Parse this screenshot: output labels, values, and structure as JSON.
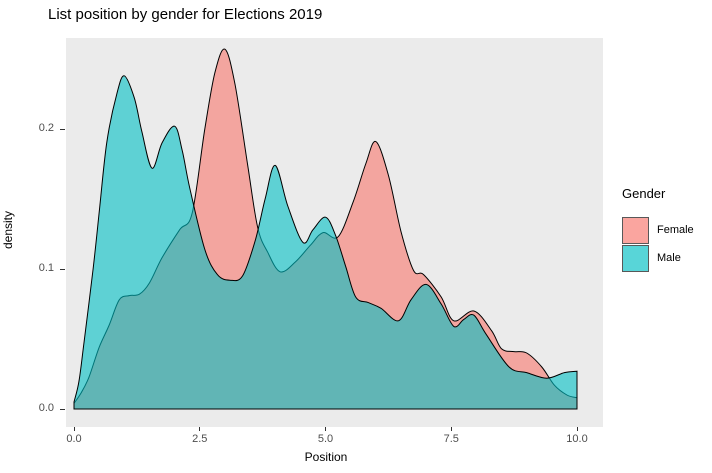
{
  "title": "List position by gender for Elections 2019",
  "chart_data": {
    "type": "area",
    "subtype": "overlapping-density",
    "title": "List position by gender for Elections 2019",
    "xlabel": "Position",
    "ylabel": "density",
    "xlim": [
      0,
      10
    ],
    "ylim": [
      0,
      0.265
    ],
    "grid": false,
    "panel_background": "#EBEBEB",
    "x_ticks": [
      {
        "value": 0,
        "label": "0.0"
      },
      {
        "value": 2.5,
        "label": "2.5"
      },
      {
        "value": 5,
        "label": "5.0"
      },
      {
        "value": 7.5,
        "label": "7.5"
      },
      {
        "value": 10,
        "label": "10.0"
      }
    ],
    "y_ticks": [
      {
        "value": 0,
        "label": "0.0"
      },
      {
        "value": 0.1,
        "label": "0.1"
      },
      {
        "value": 0.2,
        "label": "0.2"
      }
    ],
    "legend": {
      "title": "Gender",
      "position": "right",
      "entries": [
        {
          "label": "Female",
          "color": "#F8766D"
        },
        {
          "label": "Male",
          "color": "#00BFC4"
        }
      ]
    },
    "series": [
      {
        "name": "Female",
        "color": "#F8766D",
        "fill_opacity": 0.6,
        "stroke": "#000000",
        "points": [
          [
            0,
            0.004
          ],
          [
            0.15,
            0.012
          ],
          [
            0.3,
            0.023
          ],
          [
            0.5,
            0.044
          ],
          [
            0.7,
            0.06
          ],
          [
            0.9,
            0.078
          ],
          [
            1.1,
            0.081
          ],
          [
            1.3,
            0.082
          ],
          [
            1.5,
            0.09
          ],
          [
            1.75,
            0.108
          ],
          [
            2.1,
            0.128
          ],
          [
            2.35,
            0.14
          ],
          [
            2.6,
            0.2
          ],
          [
            2.8,
            0.24
          ],
          [
            3.0,
            0.257
          ],
          [
            3.2,
            0.232
          ],
          [
            3.45,
            0.175
          ],
          [
            3.65,
            0.13
          ],
          [
            3.85,
            0.112
          ],
          [
            4.1,
            0.098
          ],
          [
            4.4,
            0.105
          ],
          [
            4.7,
            0.117
          ],
          [
            4.95,
            0.126
          ],
          [
            5.25,
            0.123
          ],
          [
            5.55,
            0.148
          ],
          [
            5.8,
            0.175
          ],
          [
            6.0,
            0.191
          ],
          [
            6.25,
            0.167
          ],
          [
            6.5,
            0.127
          ],
          [
            6.75,
            0.099
          ],
          [
            6.95,
            0.096
          ],
          [
            7.3,
            0.08
          ],
          [
            7.55,
            0.063
          ],
          [
            7.95,
            0.07
          ],
          [
            8.3,
            0.056
          ],
          [
            8.5,
            0.043
          ],
          [
            8.75,
            0.041
          ],
          [
            9.0,
            0.04
          ],
          [
            9.3,
            0.03
          ],
          [
            9.55,
            0.017
          ],
          [
            9.8,
            0.01
          ],
          [
            10,
            0.008
          ]
        ]
      },
      {
        "name": "Male",
        "color": "#00BFC4",
        "fill_opacity": 0.6,
        "stroke": "#000000",
        "points": [
          [
            0,
            0.005
          ],
          [
            0.1,
            0.02
          ],
          [
            0.2,
            0.048
          ],
          [
            0.38,
            0.1
          ],
          [
            0.5,
            0.14
          ],
          [
            0.65,
            0.19
          ],
          [
            0.85,
            0.225
          ],
          [
            1.0,
            0.238
          ],
          [
            1.2,
            0.222
          ],
          [
            1.35,
            0.198
          ],
          [
            1.55,
            0.172
          ],
          [
            1.75,
            0.19
          ],
          [
            2.0,
            0.202
          ],
          [
            2.15,
            0.185
          ],
          [
            2.3,
            0.158
          ],
          [
            2.6,
            0.114
          ],
          [
            2.85,
            0.096
          ],
          [
            3.1,
            0.092
          ],
          [
            3.35,
            0.095
          ],
          [
            3.6,
            0.12
          ],
          [
            3.8,
            0.15
          ],
          [
            4.0,
            0.174
          ],
          [
            4.25,
            0.145
          ],
          [
            4.55,
            0.119
          ],
          [
            4.75,
            0.128
          ],
          [
            5.0,
            0.137
          ],
          [
            5.2,
            0.124
          ],
          [
            5.4,
            0.102
          ],
          [
            5.6,
            0.08
          ],
          [
            5.85,
            0.076
          ],
          [
            6.1,
            0.072
          ],
          [
            6.45,
            0.063
          ],
          [
            6.7,
            0.078
          ],
          [
            7.0,
            0.089
          ],
          [
            7.3,
            0.075
          ],
          [
            7.55,
            0.059
          ],
          [
            7.75,
            0.064
          ],
          [
            7.95,
            0.067
          ],
          [
            8.2,
            0.053
          ],
          [
            8.65,
            0.03
          ],
          [
            9.0,
            0.026
          ],
          [
            9.4,
            0.022
          ],
          [
            9.75,
            0.026
          ],
          [
            10,
            0.027
          ]
        ]
      }
    ]
  }
}
